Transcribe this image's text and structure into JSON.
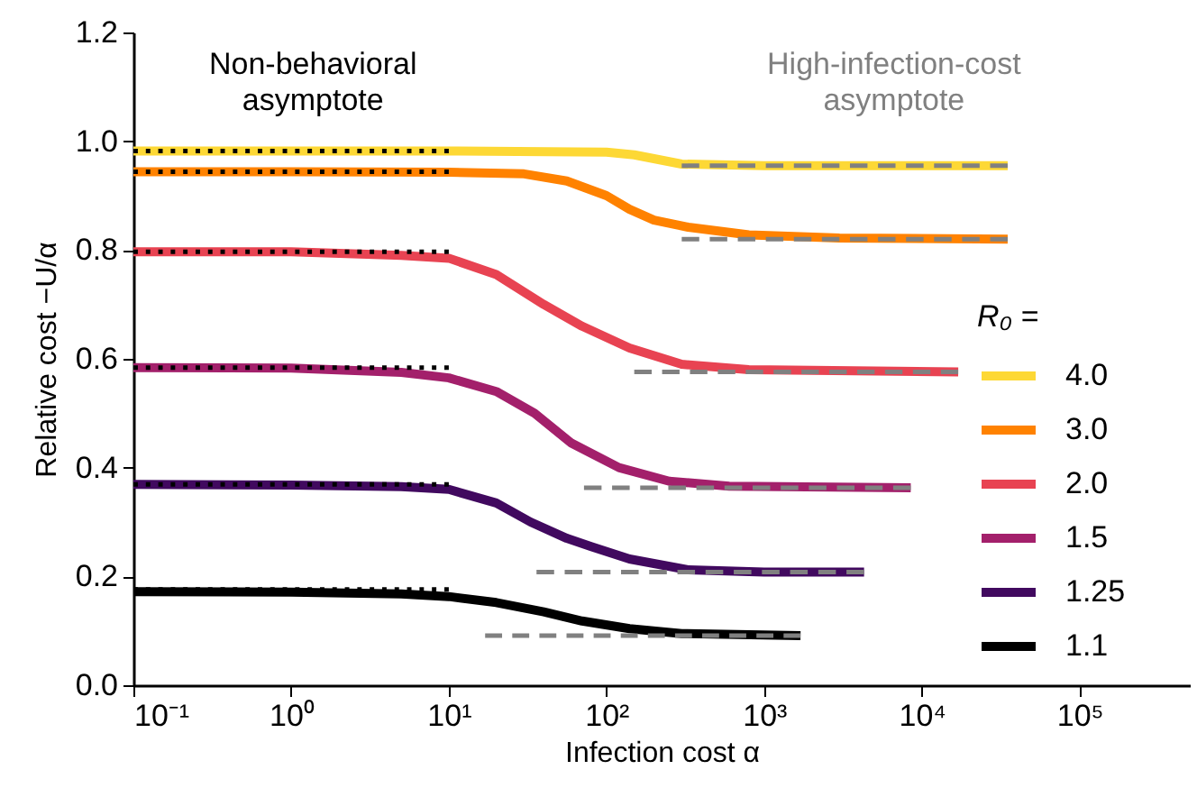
{
  "chart_data": {
    "type": "line",
    "xlabel": "Infection cost α",
    "ylabel": "Relative cost −U/α",
    "legend_title": "R₀ =",
    "legend": "right",
    "log": "x",
    "grid": false,
    "xlim": [
      0.1,
      500000
    ],
    "xticks": [
      {
        "value": 0.1,
        "label": "10⁻¹"
      },
      {
        "value": 1,
        "label": "10⁰"
      },
      {
        "value": 10,
        "label": "10¹"
      },
      {
        "value": 100,
        "label": "10²"
      },
      {
        "value": 1000,
        "label": "10³"
      },
      {
        "value": 10000,
        "label": "10⁴"
      },
      {
        "value": 100000,
        "label": "10⁵"
      }
    ],
    "ylim": [
      0,
      1.2
    ],
    "yticks": [
      {
        "value": 0,
        "label": "0.0"
      },
      0.2,
      0.4,
      0.6,
      0.8,
      {
        "value": 1,
        "label": "1.0"
      },
      1.2
    ],
    "annotations": [
      "Non-behavioral asymptote",
      "High-infection-cost asymptote"
    ],
    "series": [
      {
        "name": "4.0",
        "color": "#fdd835",
        "x": [
          0.1,
          1,
          10,
          100,
          150,
          200,
          300,
          1000,
          35000
        ],
        "values": [
          0.982,
          0.982,
          0.982,
          0.98,
          0.975,
          0.968,
          0.958,
          0.955,
          0.955
        ]
      },
      {
        "name": "3.0",
        "color": "#ff8200",
        "x": [
          0.1,
          1,
          10,
          30,
          56,
          100,
          140,
          200,
          330,
          800,
          3000,
          35000
        ],
        "values": [
          0.944,
          0.944,
          0.943,
          0.94,
          0.927,
          0.9,
          0.875,
          0.855,
          0.842,
          0.828,
          0.822,
          0.82
        ]
      },
      {
        "name": "2.0",
        "color": "#e84352",
        "x": [
          0.1,
          1,
          5,
          10,
          20,
          40,
          70,
          140,
          300,
          800,
          17000
        ],
        "values": [
          0.797,
          0.797,
          0.79,
          0.785,
          0.755,
          0.7,
          0.66,
          0.62,
          0.59,
          0.58,
          0.576
        ]
      },
      {
        "name": "1.5",
        "color": "#a3206b",
        "x": [
          0.1,
          1,
          5,
          10,
          20,
          35,
          60,
          120,
          250,
          600,
          8500
        ],
        "values": [
          0.584,
          0.583,
          0.575,
          0.565,
          0.54,
          0.5,
          0.445,
          0.4,
          0.375,
          0.366,
          0.363
        ]
      },
      {
        "name": "1.25",
        "color": "#41095f",
        "x": [
          0.1,
          1,
          5,
          10,
          20,
          33,
          56,
          80,
          140,
          330,
          1000,
          4300
        ],
        "values": [
          0.369,
          0.368,
          0.365,
          0.36,
          0.335,
          0.3,
          0.27,
          0.255,
          0.232,
          0.212,
          0.208,
          0.208
        ]
      },
      {
        "name": "1.1",
        "color": "#000000",
        "x": [
          0.1,
          1,
          5,
          10,
          20,
          40,
          70,
          140,
          300,
          1700
        ],
        "values": [
          0.172,
          0.171,
          0.168,
          0.163,
          0.152,
          0.135,
          0.118,
          0.104,
          0.095,
          0.091
        ]
      },
      {
        "color": "#000000",
        "line_style": "dotted",
        "x": [
          0.1,
          10
        ],
        "values": [
          0.982,
          0.982
        ]
      },
      {
        "color": "#000000",
        "line_style": "dotted",
        "x": [
          0.1,
          10
        ],
        "values": [
          0.944,
          0.944
        ]
      },
      {
        "color": "#000000",
        "line_style": "dotted",
        "x": [
          0.1,
          10
        ],
        "values": [
          0.797,
          0.797
        ]
      },
      {
        "color": "#000000",
        "line_style": "dotted",
        "x": [
          0.1,
          10
        ],
        "values": [
          0.584,
          0.584
        ]
      },
      {
        "color": "#000000",
        "line_style": "dotted",
        "x": [
          0.1,
          10
        ],
        "values": [
          0.369,
          0.369
        ]
      },
      {
        "color": "#000000",
        "line_style": "dotted",
        "x": [
          0.1,
          10
        ],
        "values": [
          0.176,
          0.176
        ]
      },
      {
        "color": "#808080",
        "line_style": "dashed",
        "x": [
          300,
          35000
        ],
        "values": [
          0.955,
          0.955
        ]
      },
      {
        "color": "#808080",
        "line_style": "dashed",
        "x": [
          300,
          35000
        ],
        "values": [
          0.82,
          0.82
        ]
      },
      {
        "color": "#808080",
        "line_style": "dashed",
        "x": [
          150,
          17000
        ],
        "values": [
          0.576,
          0.576
        ]
      },
      {
        "color": "#808080",
        "line_style": "dashed",
        "x": [
          72,
          8500
        ],
        "values": [
          0.363,
          0.363
        ]
      },
      {
        "color": "#808080",
        "line_style": "dashed",
        "x": [
          36,
          4300
        ],
        "values": [
          0.208,
          0.208
        ]
      },
      {
        "color": "#808080",
        "line_style": "dashed",
        "x": [
          17,
          1700
        ],
        "values": [
          0.091,
          0.091
        ]
      }
    ]
  }
}
